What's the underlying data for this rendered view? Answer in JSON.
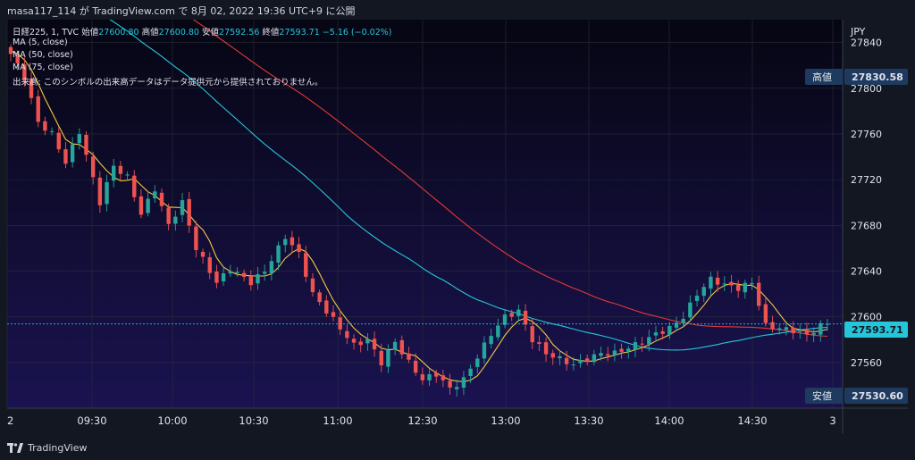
{
  "header": {
    "text": "masa117_114 が TradingView.com で 8月 02, 2022 19:36 UTC+9 に公開"
  },
  "legend": {
    "symbol": "日経225, 1, TVC",
    "open_label": "始値",
    "open": "27600.80",
    "high_label": "高値",
    "high": "27600.80",
    "low_label": "安値",
    "low": "27592.56",
    "close_label": "終値",
    "close": "27593.71",
    "change": "−5.16 (−0.02%)",
    "ma5": "MA (5, close)",
    "ma50": "MA (50, close)",
    "ma75": "MA (75, close)",
    "volume_note": "出来高: このシンボルの出来高データはデータ提供元から提供されておりません。"
  },
  "axis": {
    "currency": "JPY",
    "high_tag_label": "高値",
    "high_tag_value": "27830.58",
    "low_tag_label": "安値",
    "low_tag_value": "27530.60",
    "last_tag_value": "27593.71"
  },
  "footer": {
    "brand": "TradingView"
  },
  "colors": {
    "background": "#131722",
    "up": "#26a69a",
    "down": "#ef5350",
    "ma5": "#f5c842",
    "ma50": "#26c6da",
    "ma75": "#e53935",
    "tag_bg": "#1e3a5f",
    "last_tag": "#26c6da"
  },
  "chart_data": {
    "type": "candlestick",
    "ylim": [
      27520,
      27860
    ],
    "yticks": [
      27560,
      27600,
      27640,
      27680,
      27720,
      27760,
      27800,
      27840
    ],
    "xticks": [
      "2",
      "09:30",
      "10:00",
      "10:30",
      "11:00",
      "12:30",
      "13:00",
      "13:30",
      "14:00",
      "14:30",
      "3"
    ],
    "price_key": [
      [
        0,
        27830
      ],
      [
        2,
        27810
      ],
      [
        4,
        27770
      ],
      [
        6,
        27760
      ],
      [
        8,
        27735
      ],
      [
        10,
        27762
      ],
      [
        13,
        27700
      ],
      [
        15,
        27732
      ],
      [
        17,
        27722
      ],
      [
        19,
        27690
      ],
      [
        21,
        27712
      ],
      [
        23,
        27680
      ],
      [
        25,
        27700
      ],
      [
        27,
        27660
      ],
      [
        30,
        27630
      ],
      [
        32,
        27642
      ],
      [
        35,
        27630
      ],
      [
        37,
        27640
      ],
      [
        40,
        27670
      ],
      [
        42,
        27655
      ],
      [
        44,
        27620
      ],
      [
        46,
        27605
      ],
      [
        48,
        27590
      ],
      [
        50,
        27575
      ],
      [
        52,
        27580
      ],
      [
        54,
        27560
      ],
      [
        56,
        27578
      ],
      [
        58,
        27560
      ],
      [
        60,
        27545
      ],
      [
        62,
        27550
      ],
      [
        64,
        27537
      ],
      [
        66,
        27545
      ],
      [
        68,
        27565
      ],
      [
        70,
        27585
      ],
      [
        72,
        27600
      ],
      [
        74,
        27605
      ],
      [
        76,
        27580
      ],
      [
        78,
        27568
      ],
      [
        80,
        27563
      ],
      [
        82,
        27558
      ],
      [
        84,
        27563
      ],
      [
        86,
        27568
      ],
      [
        88,
        27568
      ],
      [
        90,
        27573
      ],
      [
        92,
        27578
      ],
      [
        94,
        27585
      ],
      [
        96,
        27590
      ],
      [
        98,
        27600
      ],
      [
        100,
        27620
      ],
      [
        102,
        27633
      ],
      [
        104,
        27628
      ],
      [
        106,
        27625
      ],
      [
        108,
        27630
      ],
      [
        110,
        27592
      ],
      [
        112,
        27590
      ],
      [
        114,
        27588
      ],
      [
        116,
        27584
      ],
      [
        118,
        27592
      ],
      [
        119,
        27593.71
      ]
    ]
  }
}
